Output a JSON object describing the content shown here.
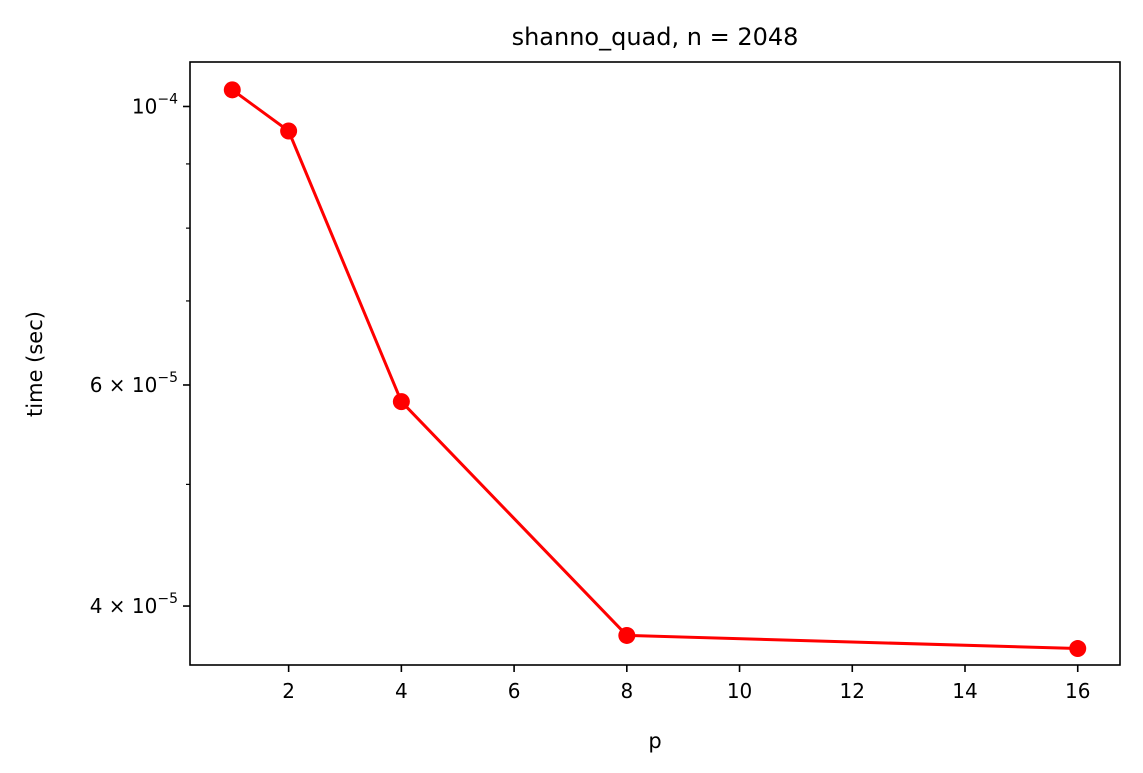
{
  "chart_data": {
    "type": "line",
    "title": "shanno_quad, n = 2048",
    "xlabel": "p",
    "ylabel": "time (sec)",
    "yscale": "log",
    "xlim": [
      0.25,
      16.75
    ],
    "ylim": [
      3.59e-05,
      0.0001085
    ],
    "x_ticks": [
      2,
      4,
      6,
      8,
      10,
      12,
      14,
      16
    ],
    "x_tick_labels": [
      "2",
      "4",
      "6",
      "8",
      "10",
      "12",
      "14",
      "16"
    ],
    "y_major_ticks": [
      {
        "value": 0.0001,
        "mantissa": "",
        "exponent": "−4"
      },
      {
        "value": 6e-05,
        "mantissa": "6",
        "exponent": "−5"
      },
      {
        "value": 4e-05,
        "mantissa": "4",
        "exponent": "−5"
      }
    ],
    "y_minor_ticks": [
      5e-05,
      7e-05,
      8e-05,
      9e-05
    ],
    "grid": false,
    "legend": false,
    "series": [
      {
        "color": "#ff0000",
        "marker": "circle",
        "x": [
          1,
          2,
          4,
          8,
          16
        ],
        "y": [
          0.0001031,
          9.56e-05,
          5.82e-05,
          3.79e-05,
          3.7e-05
        ]
      }
    ]
  }
}
